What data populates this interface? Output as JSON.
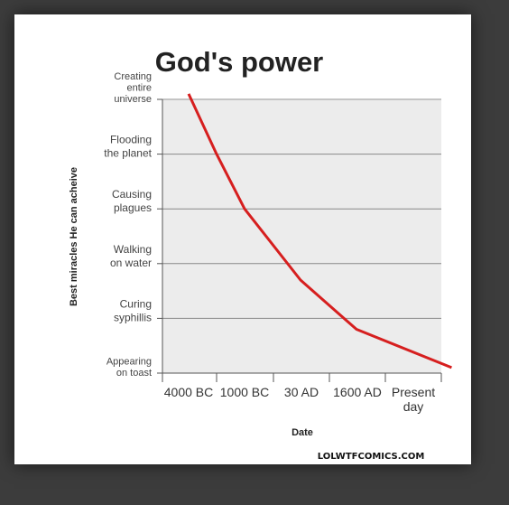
{
  "colors": {
    "background": "#3c3c3c",
    "card": "#ffffff",
    "plot_area": "#ececec",
    "grid": "#888888",
    "line": "#d61f1f"
  },
  "watermark": "LOLWTFCOMICS.COM",
  "chart_data": {
    "type": "line",
    "title": "God's power",
    "xlabel": "Date",
    "ylabel": "Best miracles He can acheive",
    "x_categories": [
      "4000 BC",
      "1000 BC",
      "30 AD",
      "1600 AD",
      "Present day"
    ],
    "y_categories": [
      "Appearing on toast",
      "Curing syphillis",
      "Walking on water",
      "Causing plagues",
      "Flooding the planet",
      "Creating entire universe"
    ],
    "grid": true,
    "series": [
      {
        "values": [
          {
            "x": -0.5,
            "y": 5.1
          },
          {
            "x": 0.0,
            "y": 4.0
          },
          {
            "x": 0.5,
            "y": 3.0
          },
          {
            "x": 1.5,
            "y": 1.7
          },
          {
            "x": 2.5,
            "y": 0.8
          },
          {
            "x": 4.2,
            "y": 0.1
          }
        ]
      }
    ]
  }
}
